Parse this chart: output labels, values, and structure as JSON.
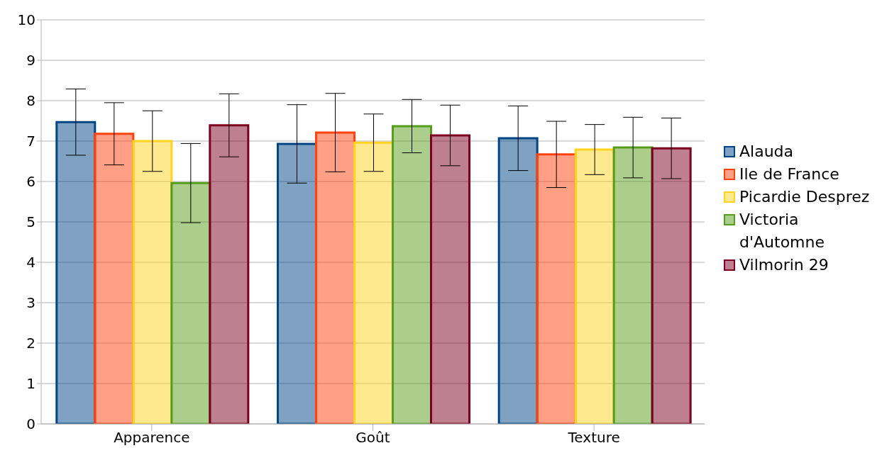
{
  "chart_data": {
    "type": "bar",
    "categories": [
      "Apparence",
      "Goût",
      "Texture"
    ],
    "series": [
      {
        "name": "Alauda",
        "color": "#004586",
        "values": [
          7.47,
          6.93,
          7.07
        ],
        "errors": [
          0.82,
          0.97,
          0.8
        ]
      },
      {
        "name": "Ile de France",
        "color": "#ff420e",
        "values": [
          7.18,
          7.21,
          6.67
        ],
        "errors": [
          0.77,
          0.97,
          0.82
        ]
      },
      {
        "name": "Picardie Desprez",
        "color": "#ffd320",
        "values": [
          7.0,
          6.96,
          6.79
        ],
        "errors": [
          0.75,
          0.71,
          0.62
        ]
      },
      {
        "name": "Victoria d'Automne",
        "color": "#579d1c",
        "values": [
          5.96,
          7.37,
          6.84
        ],
        "errors": [
          0.98,
          0.66,
          0.75
        ]
      },
      {
        "name": "Vilmorin 29",
        "color": "#7e0021",
        "values": [
          7.39,
          7.14,
          6.82
        ],
        "errors": [
          0.78,
          0.75,
          0.75
        ]
      }
    ],
    "ylim": [
      0,
      10
    ],
    "yticks": [
      0,
      1,
      2,
      3,
      4,
      5,
      6,
      7,
      8,
      9,
      10
    ],
    "grid": "y",
    "legend": "right"
  }
}
